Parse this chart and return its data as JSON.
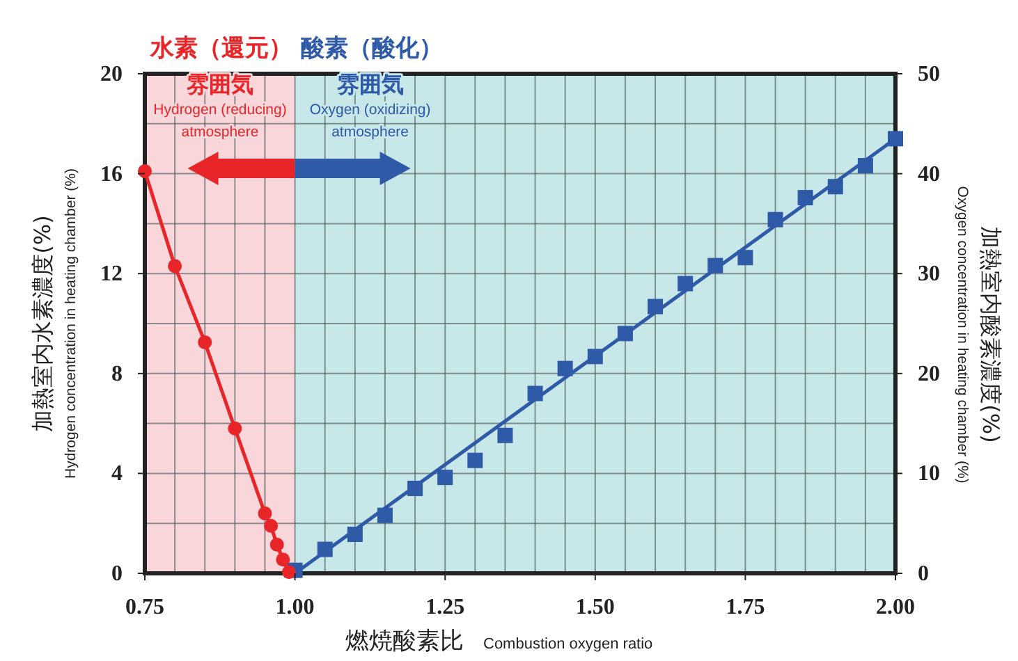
{
  "chart_data": {
    "type": "scatter",
    "xlabel": "燃焼酸素比\nCombustion oxygen ratio",
    "ylabel": "加熱室内水素濃度(%)\nHydrogen concentration in heating chamber (%)",
    "y2label": "Oxygen concentration in heating chamber (%)\n加熱室内酸素濃度(%)",
    "annotations": [
      "雰囲気",
      "Hydrogen (reducing)\natmosphere",
      "雰囲気",
      "Oxygen (oxidizing)\natmosphere"
    ],
    "xlim": [
      0.75,
      2.0
    ],
    "xticks": [
      {
        "value": 0.75,
        "label": "0.75"
      },
      {
        "value": 0.8,
        "label": null
      },
      {
        "value": 0.85,
        "label": null
      },
      {
        "value": 0.9,
        "label": null
      },
      {
        "value": 0.95,
        "label": null
      },
      {
        "value": 1.0,
        "label": "1.00"
      },
      {
        "value": 1.05,
        "label": null
      },
      {
        "value": 1.1,
        "label": null
      },
      {
        "value": 1.15,
        "label": null
      },
      {
        "value": 1.2,
        "label": null
      },
      {
        "value": 1.25,
        "label": "1.25"
      },
      {
        "value": 1.3,
        "label": null
      },
      {
        "value": 1.35,
        "label": null
      },
      {
        "value": 1.4,
        "label": null
      },
      {
        "value": 1.45,
        "label": null
      },
      {
        "value": 1.5,
        "label": "1.50"
      },
      {
        "value": 1.55,
        "label": null
      },
      {
        "value": 1.6,
        "label": null
      },
      {
        "value": 1.65,
        "label": null
      },
      {
        "value": 1.7,
        "label": null
      },
      {
        "value": 1.75,
        "label": "1.75"
      },
      {
        "value": 1.8,
        "label": null
      },
      {
        "value": 1.85,
        "label": null
      },
      {
        "value": 1.9,
        "label": null
      },
      {
        "value": 1.95,
        "label": null
      },
      {
        "value": 2.0,
        "label": "2.00"
      }
    ],
    "ylim": [
      0,
      20
    ],
    "yticks": [
      0,
      {
        "value": 2,
        "label": null
      },
      4,
      {
        "value": 6,
        "label": null
      },
      8,
      {
        "value": 10,
        "label": null
      },
      12,
      {
        "value": 14,
        "label": null
      },
      16,
      {
        "value": 18,
        "label": null
      },
      20
    ],
    "y2lim": [
      0,
      50
    ],
    "y2ticks": [
      0,
      10,
      20,
      30,
      40,
      50
    ],
    "grid": true,
    "bands": [
      {
        "axis": "x",
        "from": 0.75,
        "to": 1.0,
        "color": "#f9d6da",
        "label": "水素（還元）"
      },
      {
        "axis": "x",
        "from": 1.0,
        "to": 2.0,
        "color": "#c8e7e8",
        "label": "酸素（酸化）"
      }
    ],
    "series": [
      {
        "type": "line",
        "marker": "circle",
        "color": "#e8262a",
        "x": [
          0.75,
          0.8,
          0.85,
          0.9,
          0.95,
          0.96,
          0.97,
          0.98,
          0.99
        ],
        "values": [
          16.1,
          12.3,
          9.25,
          5.8,
          2.4,
          1.9,
          1.15,
          0.55,
          0.05
        ]
      },
      {
        "marker": "square",
        "axis": "y2",
        "color": "#2f5aa8",
        "x": [
          1.0,
          1.05,
          1.1,
          1.15,
          1.2,
          1.25,
          1.3,
          1.35,
          1.4,
          1.45,
          1.5,
          1.55,
          1.6,
          1.65,
          1.7,
          1.75,
          1.8,
          1.85,
          1.9,
          1.95,
          2.0
        ],
        "values": [
          0.3,
          2.4,
          3.9,
          5.8,
          8.5,
          9.6,
          11.3,
          13.8,
          18.0,
          20.5,
          21.7,
          24.0,
          26.7,
          29.0,
          30.8,
          31.6,
          35.4,
          37.6,
          38.7,
          40.8,
          43.5
        ]
      },
      {
        "type": "line",
        "marker": "none",
        "axis": "y2",
        "color": "#2f5aa8",
        "x": [
          1.0,
          2.0
        ],
        "values": [
          0,
          43.5
        ]
      }
    ]
  }
}
